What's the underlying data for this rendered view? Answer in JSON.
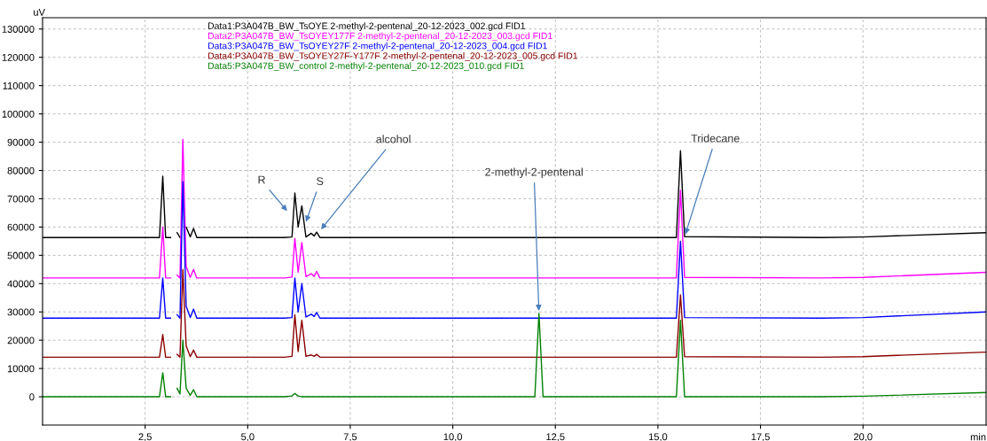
{
  "chart_data": {
    "type": "line",
    "xlabel": "min",
    "ylabel": "uV",
    "x": [
      0.0,
      2.85,
      2.93,
      3.0,
      3.12,
      3.2,
      3.28,
      3.35,
      3.42,
      3.5,
      3.6,
      3.68,
      3.76,
      5.9,
      6.08,
      6.15,
      6.23,
      6.32,
      6.42,
      6.55,
      6.62,
      6.68,
      6.76,
      12.0,
      12.1,
      12.2,
      15.45,
      15.55,
      15.65,
      19.0,
      20.0,
      23.0
    ],
    "series": [
      {
        "name": "Data1:P3A047B_BW_TsOYE 2-methyl-2-pentenal_20-12-2023_002.gcd FID1",
        "color": "#000000",
        "values": [
          56300,
          56300,
          78000,
          56300,
          56300,
          null,
          58000,
          56300,
          null,
          60000,
          56500,
          59500,
          56300,
          56300,
          56500,
          72000,
          60000,
          67500,
          56500,
          57800,
          56800,
          58200,
          56300,
          56300,
          56300,
          56300,
          56300,
          87000,
          56600,
          56300,
          56500,
          58000
        ]
      },
      {
        "name": "Data2:P3A047B_BW_TsOYEY177F 2-methyl-2-pentenal_20-12-2023_003.gcd FID1",
        "color": "#ff00ff",
        "values": [
          42000,
          42000,
          60000,
          42000,
          42000,
          null,
          43000,
          42000,
          91000,
          46000,
          42200,
          45000,
          42000,
          42000,
          42300,
          56000,
          44000,
          54500,
          42500,
          43500,
          42500,
          44300,
          42000,
          42000,
          42000,
          42000,
          42000,
          73000,
          42200,
          42000,
          42200,
          44000
        ]
      },
      {
        "name": "Data3:P3A047B_BW_TsOYEY27F 2-methyl-2-pentenal_20-12-2023_004.gcd FID1",
        "color": "#0000ff",
        "values": [
          27800,
          27800,
          42000,
          27800,
          27800,
          null,
          29000,
          27800,
          76000,
          32000,
          28000,
          31000,
          27800,
          27800,
          28000,
          42000,
          30000,
          40000,
          28200,
          29200,
          28400,
          29800,
          27800,
          27800,
          27800,
          27800,
          27800,
          55000,
          28000,
          27800,
          28000,
          30000
        ]
      },
      {
        "name": "Data4:P3A047B_BW_TsOYEY27F-Y177F 2-methyl-2-pentenal_20-12-2023_005.gcd FID1",
        "color": "#8b0000",
        "values": [
          14000,
          14000,
          22000,
          14000,
          14000,
          null,
          15000,
          14000,
          45000,
          18000,
          14200,
          16500,
          14000,
          14000,
          14300,
          29000,
          16000,
          27000,
          14300,
          14800,
          14300,
          15000,
          14000,
          14000,
          14000,
          14000,
          14000,
          36000,
          14200,
          14000,
          14200,
          15800
        ]
      },
      {
        "name": "Data5:P3A047B_BW_control 2-methyl-2-pentenal_20-12-2023_010.gcd FID1",
        "color": "#008000",
        "values": [
          0,
          0,
          8500,
          0,
          0,
          null,
          3000,
          1000,
          20000,
          3000,
          500,
          2500,
          0,
          0,
          300,
          1200,
          300,
          0,
          0,
          0,
          0,
          0,
          0,
          0,
          29500,
          0,
          0,
          27000,
          0,
          0,
          200,
          1500
        ]
      }
    ],
    "xlim": [
      0,
      23
    ],
    "ylim": [
      -10000,
      134000
    ],
    "xticks": [
      {
        "value": 2.5,
        "label": "2,5"
      },
      {
        "value": 5.0,
        "label": "5,0"
      },
      {
        "value": 7.5,
        "label": "7,5"
      },
      {
        "value": 10.0,
        "label": "10,0"
      },
      {
        "value": 12.5,
        "label": "12,5"
      },
      {
        "value": 15.0,
        "label": "15,0"
      },
      {
        "value": 17.5,
        "label": "17,5"
      },
      {
        "value": 20.0,
        "label": "20,0"
      }
    ],
    "yticks": [
      0,
      10000,
      20000,
      30000,
      40000,
      50000,
      60000,
      70000,
      80000,
      90000,
      100000,
      110000,
      120000,
      130000
    ],
    "annotations": [
      {
        "text": "R",
        "x": 6.0,
        "y": 65000
      },
      {
        "text": "S",
        "x": 6.4,
        "y": 61000
      },
      {
        "text": "alcohol",
        "x": 6.75,
        "y": 58500
      },
      {
        "text": "2-methyl-2-pentenal",
        "x": 12.1,
        "y": 29500
      },
      {
        "text": "Tridecane",
        "x": 15.65,
        "y": 56600
      }
    ],
    "grid": true,
    "legend": "top left",
    "marker": "none",
    "line_style": "solid"
  }
}
